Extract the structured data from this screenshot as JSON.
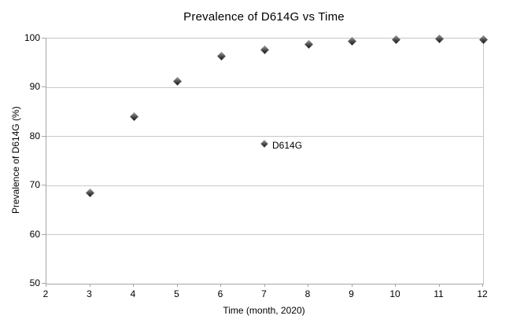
{
  "chart_data": {
    "type": "scatter",
    "title": "Prevalence of D614G vs Time",
    "xlabel": "Time (month, 2020)",
    "ylabel": "Prevalence of D614G (%)",
    "xlim": [
      2,
      12
    ],
    "ylim": [
      50,
      100
    ],
    "x_ticks": [
      2,
      3,
      4,
      5,
      6,
      7,
      8,
      9,
      10,
      11,
      12
    ],
    "y_ticks": [
      50,
      60,
      70,
      80,
      90,
      100
    ],
    "grid": "horizontal-major-only",
    "legend": {
      "label": "D614G",
      "position": "inside-plot"
    },
    "series": [
      {
        "name": "D614G",
        "marker": "diamond",
        "color": "#2b2b2b",
        "x": [
          3,
          4,
          5,
          6,
          7,
          8,
          9,
          10,
          11,
          12
        ],
        "y": [
          68.5,
          84.0,
          91.2,
          96.4,
          97.7,
          98.8,
          99.5,
          99.8,
          100.0,
          99.8
        ]
      }
    ],
    "colors": {
      "background": "#ffffff",
      "gridline": "#c9c9c9",
      "axis": "#a6a6a6",
      "text": "#000000",
      "marker": "#2b2b2b"
    }
  }
}
